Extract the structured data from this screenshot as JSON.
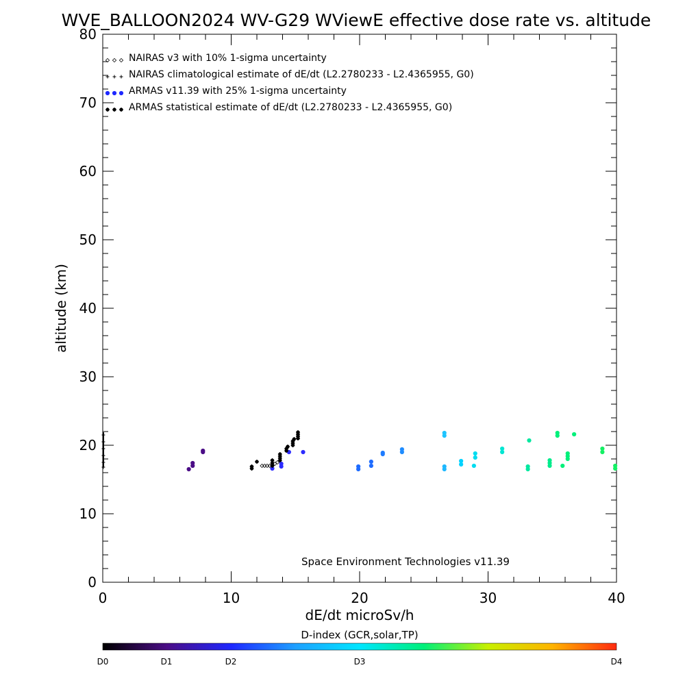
{
  "chart_data": {
    "type": "scatter",
    "title": "WVE_BALLOON2024 WV-G29 WViewE effective dose rate vs. altitude",
    "xlabel": "dE/dt microSv/h",
    "ylabel": "altitude (km)",
    "xlim": [
      0,
      40
    ],
    "ylim": [
      0,
      80
    ],
    "xticks": [
      "0",
      "10",
      "20",
      "30",
      "40"
    ],
    "yticks": [
      "0",
      "10",
      "20",
      "30",
      "40",
      "50",
      "60",
      "70",
      "80"
    ],
    "grid": false,
    "legend_placement": "top-left",
    "legend": [
      {
        "marker": "diamond",
        "label": "NAIRAS v3 with 10% 1-sigma uncertainty"
      },
      {
        "marker": "plus",
        "label": "NAIRAS climatological estimate of dE/dt (L2.2780233 - L2.4365955, G0)"
      },
      {
        "marker": "dot",
        "label": "ARMAS v11.39 with 25% 1-sigma uncertainty"
      },
      {
        "marker": "asterisk",
        "label": "ARMAS statistical estimate of dE/dt (L2.2780233 - L2.4365955, G0)"
      }
    ],
    "annotation": "Space Environment Technologies v11.39",
    "colorbar": {
      "title": "D-index (GCR,solar,TP)",
      "labels": [
        "D0",
        "D1",
        "D2",
        "D3",
        "D4"
      ],
      "stops": [
        "#000000",
        "#4b0d86",
        "#1e28ff",
        "#1ea0ff",
        "#00e6ff",
        "#00f07a",
        "#c8f000",
        "#ffb400",
        "#ff2a10"
      ]
    },
    "series": [
      {
        "name": "NAIRAS v3 with 10% 1-sigma uncertainty",
        "marker": "diamond",
        "points": [
          [
            12.4,
            17.0
          ],
          [
            12.6,
            17.0
          ],
          [
            12.8,
            17.0
          ],
          [
            13.0,
            17.0
          ],
          [
            13.2,
            17.1
          ],
          [
            13.4,
            17.3
          ],
          [
            13.6,
            17.5
          ],
          [
            14.4,
            19.8
          ]
        ]
      },
      {
        "name": "NAIRAS climatological estimate of dE/dt (L2.2780233 - L2.4365955, G0)",
        "marker": "plus",
        "points": [
          [
            0.05,
            16.8
          ],
          [
            0.05,
            17.5
          ],
          [
            0.05,
            18.5
          ],
          [
            0.05,
            19.5
          ],
          [
            0.05,
            20.5
          ],
          [
            0.05,
            21.5
          ]
        ]
      },
      {
        "name": "ARMAS v11.39 with 25% 1-sigma uncertainty",
        "marker": "dot",
        "points": [
          {
            "x": 6.7,
            "y": 16.5,
            "color": "#4b0d86"
          },
          {
            "x": 7.0,
            "y": 17.0,
            "color": "#4b0d86"
          },
          {
            "x": 7.0,
            "y": 17.4,
            "color": "#4b0d86"
          },
          {
            "x": 7.8,
            "y": 19.0,
            "color": "#4b0d86"
          },
          {
            "x": 7.8,
            "y": 19.2,
            "color": "#4b0d86"
          },
          {
            "x": 13.2,
            "y": 16.6,
            "color": "#2d2cff"
          },
          {
            "x": 13.9,
            "y": 16.9,
            "color": "#2d2cff"
          },
          {
            "x": 13.9,
            "y": 17.3,
            "color": "#2d2cff"
          },
          {
            "x": 14.5,
            "y": 19.0,
            "color": "#2d2cff"
          },
          {
            "x": 15.6,
            "y": 19.0,
            "color": "#2d2cff"
          },
          {
            "x": 19.9,
            "y": 16.5,
            "color": "#1e6cff"
          },
          {
            "x": 19.9,
            "y": 16.9,
            "color": "#1e6cff"
          },
          {
            "x": 20.9,
            "y": 17.0,
            "color": "#1e6cff"
          },
          {
            "x": 20.9,
            "y": 17.6,
            "color": "#1e6cff"
          },
          {
            "x": 21.8,
            "y": 18.7,
            "color": "#1e7cff"
          },
          {
            "x": 21.8,
            "y": 18.9,
            "color": "#1e7cff"
          },
          {
            "x": 23.3,
            "y": 19.0,
            "color": "#1e8cff"
          },
          {
            "x": 23.3,
            "y": 19.4,
            "color": "#1e8cff"
          },
          {
            "x": 26.6,
            "y": 16.5,
            "color": "#1eb8ff"
          },
          {
            "x": 26.6,
            "y": 16.9,
            "color": "#1eb8ff"
          },
          {
            "x": 26.6,
            "y": 21.4,
            "color": "#1ec4ff"
          },
          {
            "x": 26.6,
            "y": 21.8,
            "color": "#1ec4ff"
          },
          {
            "x": 27.9,
            "y": 17.2,
            "color": "#00d2ff"
          },
          {
            "x": 27.9,
            "y": 17.7,
            "color": "#00d2ff"
          },
          {
            "x": 28.9,
            "y": 17.0,
            "color": "#00dcf0"
          },
          {
            "x": 29.0,
            "y": 18.2,
            "color": "#00dcf0"
          },
          {
            "x": 29.0,
            "y": 18.8,
            "color": "#00dcf0"
          },
          {
            "x": 31.1,
            "y": 19.0,
            "color": "#00e6d2"
          },
          {
            "x": 31.1,
            "y": 19.5,
            "color": "#00e6d2"
          },
          {
            "x": 33.1,
            "y": 16.5,
            "color": "#00e8a0"
          },
          {
            "x": 33.1,
            "y": 16.9,
            "color": "#00e8a0"
          },
          {
            "x": 33.2,
            "y": 20.7,
            "color": "#00e8a0"
          },
          {
            "x": 34.8,
            "y": 17.0,
            "color": "#00ec8c"
          },
          {
            "x": 34.8,
            "y": 17.4,
            "color": "#00ec8c"
          },
          {
            "x": 34.8,
            "y": 17.8,
            "color": "#00ec8c"
          },
          {
            "x": 35.4,
            "y": 21.4,
            "color": "#00f07a"
          },
          {
            "x": 35.4,
            "y": 21.8,
            "color": "#00f07a"
          },
          {
            "x": 35.8,
            "y": 17.0,
            "color": "#00f07a"
          },
          {
            "x": 36.2,
            "y": 18.0,
            "color": "#00f07a"
          },
          {
            "x": 36.2,
            "y": 18.4,
            "color": "#00f07a"
          },
          {
            "x": 36.2,
            "y": 18.8,
            "color": "#00f07a"
          },
          {
            "x": 36.7,
            "y": 21.6,
            "color": "#00f07a"
          },
          {
            "x": 38.9,
            "y": 19.0,
            "color": "#14f064"
          },
          {
            "x": 38.9,
            "y": 19.5,
            "color": "#14f064"
          },
          {
            "x": 39.9,
            "y": 16.6,
            "color": "#14f064"
          },
          {
            "x": 39.9,
            "y": 17.0,
            "color": "#14f064"
          }
        ]
      },
      {
        "name": "ARMAS statistical estimate of dE/dt (L2.2780233 - L2.4365955, G0)",
        "marker": "asterisk",
        "points": [
          [
            11.6,
            16.6
          ],
          [
            11.6,
            16.9
          ],
          [
            12.0,
            17.6
          ],
          [
            13.2,
            17.0
          ],
          [
            13.2,
            17.4
          ],
          [
            13.2,
            17.8
          ],
          [
            13.8,
            17.8
          ],
          [
            13.8,
            18.1
          ],
          [
            13.8,
            18.4
          ],
          [
            13.8,
            18.7
          ],
          [
            14.3,
            19.2
          ],
          [
            14.3,
            19.5
          ],
          [
            14.4,
            19.8
          ],
          [
            14.8,
            20.0
          ],
          [
            14.8,
            20.3
          ],
          [
            14.8,
            20.6
          ],
          [
            14.9,
            20.9
          ],
          [
            15.2,
            21.0
          ],
          [
            15.2,
            21.3
          ],
          [
            15.2,
            21.6
          ],
          [
            15.2,
            21.9
          ]
        ]
      }
    ]
  }
}
